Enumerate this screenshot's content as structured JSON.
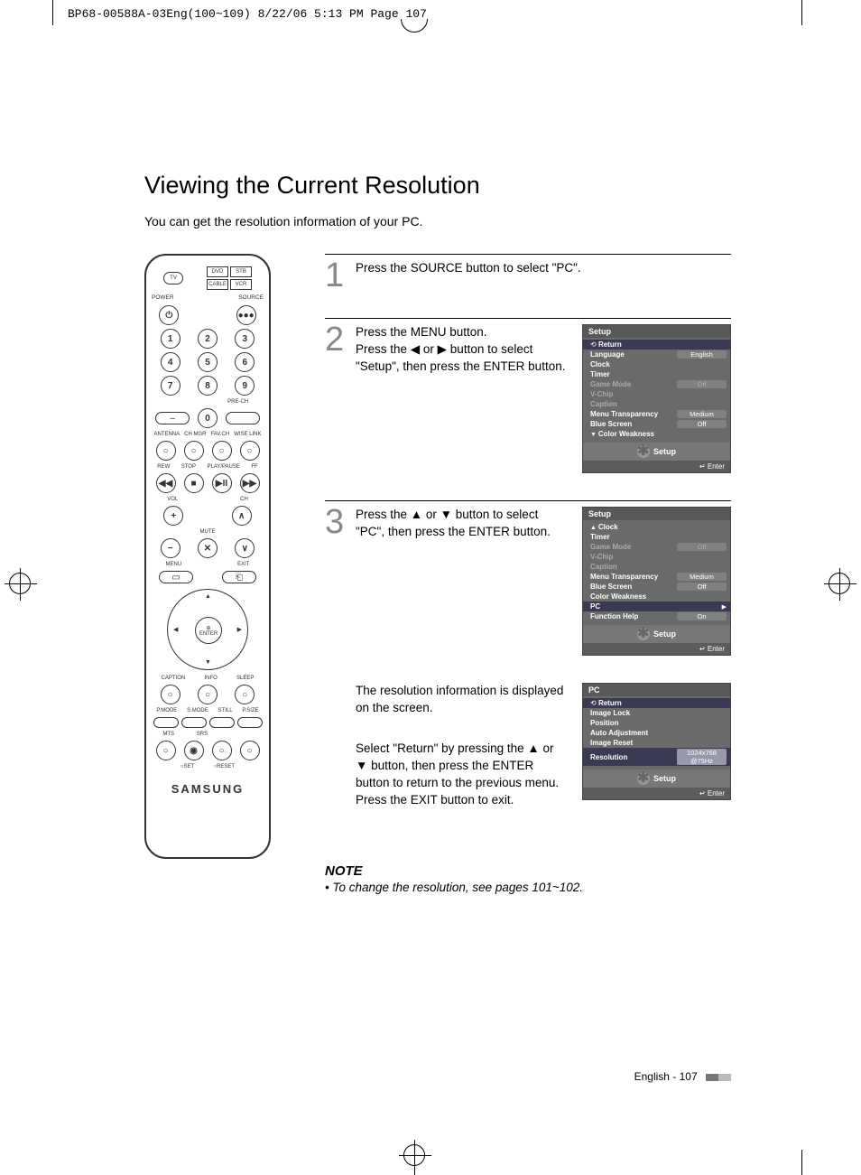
{
  "crop_header": "BP68-00588A-03Eng(100~109)  8/22/06  5:13 PM  Page 107",
  "title": "Viewing the Current Resolution",
  "intro": "You can get the resolution information of your PC.",
  "remote": {
    "src_boxes": [
      "DVD",
      "STB",
      "CABLE",
      "VCR"
    ],
    "tv": "TV",
    "power": "POWER",
    "source": "SOURCE",
    "numbers": [
      "1",
      "2",
      "3",
      "4",
      "5",
      "6",
      "7",
      "8",
      "9",
      "0"
    ],
    "prech": "PRE-CH",
    "dash": "–",
    "row_labels1": [
      "ANTENNA",
      "CH MGR",
      "FAV.CH",
      "WISE LINK"
    ],
    "row_labels2": [
      "REW",
      "STOP",
      "PLAY/PAUSE",
      "FF"
    ],
    "vol": "VOL",
    "ch": "CH",
    "mute": "MUTE",
    "menu": "MENU",
    "exit": "EXIT",
    "enter": "ENTER",
    "row_labels3": [
      "CAPTION",
      "INFO",
      "SLEEP"
    ],
    "row_labels4": [
      "P.MODE",
      "S.MODE",
      "STILL",
      "P.SIZE"
    ],
    "row_labels5": [
      "MTS",
      "SRS",
      " ",
      " "
    ],
    "row_labels6": [
      "SET",
      "RESET"
    ],
    "brand": "SAMSUNG"
  },
  "steps": {
    "s1": {
      "num": "1",
      "text": "Press the SOURCE button to select \"PC\"."
    },
    "s2": {
      "num": "2",
      "text": "Press the MENU button.\nPress the ◀ or ▶ button to select \"Setup\", then press the ENTER button.",
      "osd": {
        "title": "Setup",
        "return": "Return",
        "rows": [
          {
            "k": "Language",
            "v": "English"
          },
          {
            "k": "Clock",
            "v": ""
          },
          {
            "k": "Timer",
            "v": ""
          },
          {
            "k": "Game Mode",
            "v": "Off",
            "dim": true
          },
          {
            "k": "V-Chip",
            "v": "",
            "dim": true
          },
          {
            "k": "Caption",
            "v": "",
            "dim": true
          },
          {
            "k": "Menu Transparency",
            "v": "Medium"
          },
          {
            "k": "Blue Screen",
            "v": "Off"
          },
          {
            "k": "Color Weakness",
            "v": "",
            "pre": "▼"
          }
        ],
        "footer": "Setup",
        "enter": "↵ Enter"
      }
    },
    "s3": {
      "num": "3",
      "text": "Press the ▲ or ▼ button to select \"PC\", then press the ENTER button.",
      "osd": {
        "title": "Setup",
        "rows": [
          {
            "k": "Clock",
            "v": "",
            "pre": "▲"
          },
          {
            "k": "Timer",
            "v": ""
          },
          {
            "k": "Game Mode",
            "v": "Off",
            "dim": true
          },
          {
            "k": "V-Chip",
            "v": "",
            "dim": true
          },
          {
            "k": "Caption",
            "v": "",
            "dim": true
          },
          {
            "k": "Menu Transparency",
            "v": "Medium"
          },
          {
            "k": "Blue Screen",
            "v": "Off"
          },
          {
            "k": "Color Weakness",
            "v": ""
          },
          {
            "k": "PC",
            "v": "",
            "hl": true,
            "post": "▶"
          },
          {
            "k": "Function Help",
            "v": "On"
          }
        ],
        "footer": "Setup",
        "enter": "↵ Enter"
      }
    },
    "s4": {
      "text1": "The resolution information is displayed on the screen.",
      "text2": "Select \"Return\" by pressing the ▲ or ▼ button, then press the ENTER button to return to the previous menu. Press the EXIT button to exit.",
      "osd": {
        "title": "PC",
        "return": "Return",
        "rows": [
          {
            "k": "Image Lock",
            "v": ""
          },
          {
            "k": "Position",
            "v": ""
          },
          {
            "k": "Auto Adjustment",
            "v": ""
          },
          {
            "k": "Image Reset",
            "v": ""
          },
          {
            "k": "Resolution",
            "v": "1024x768 @75Hz",
            "hl": true
          }
        ],
        "footer": "Setup",
        "enter": "↵ Enter"
      }
    }
  },
  "note": {
    "title": "NOTE",
    "text": "• To change the resolution, see pages 101~102."
  },
  "page_footer": "English - 107"
}
